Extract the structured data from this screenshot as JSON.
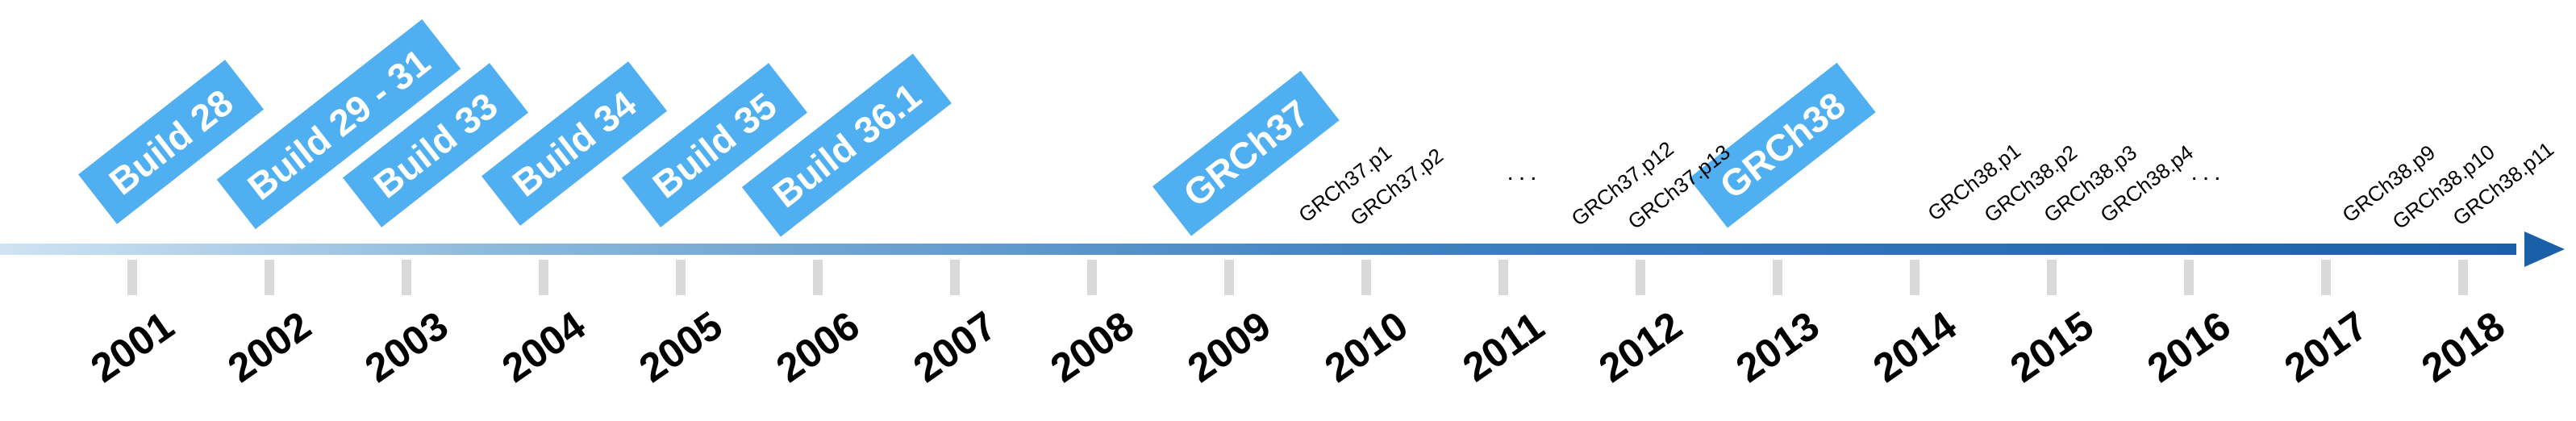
{
  "years": [
    "2001",
    "2002",
    "2003",
    "2004",
    "2005",
    "2006",
    "2007",
    "2008",
    "2009",
    "2010",
    "2011",
    "2012",
    "2013",
    "2014",
    "2015",
    "2016",
    "2017",
    "2018"
  ],
  "builds": [
    "Build 28",
    "Build 29 - 31",
    "Build 33",
    "Build 34",
    "Build 35",
    "Build 36.1",
    "GRCh37",
    "GRCh38"
  ],
  "patches": [
    "GRCh37.p1",
    "GRCh37.p2",
    "GRCh37.p12",
    "GRCh37.p13",
    "GRCh38.p1",
    "GRCh38.p2",
    "GRCh38.p3",
    "GRCh38.p4",
    "GRCh38.p9",
    "GRCh38.p10",
    "GRCh38.p11"
  ],
  "ellipses": [
    "...",
    "..."
  ],
  "colors": {
    "badge": "#4faff0",
    "axis_start": "#cfe3f3",
    "axis_end": "#1a5fa8",
    "tick": "#d9d9d9"
  }
}
